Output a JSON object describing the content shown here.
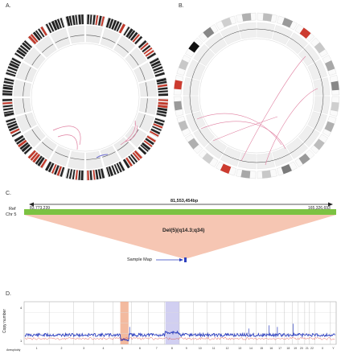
{
  "panels": {
    "a": {
      "label": "A."
    },
    "b": {
      "label": "B."
    },
    "c": {
      "label": "C.",
      "ref_label": "Ref",
      "chr_label": "Chr 5",
      "start": "83,773,239",
      "end": "165,326,693",
      "length": "81,553,454bp",
      "deletion": "Del(5)(q14.3;q34)",
      "sample_map": "Sample Map"
    },
    "d": {
      "label": "D.",
      "ylabel": "Copy number",
      "xlabel_left": "Aneuploidy",
      "ytick_top": "4",
      "ytick_bottom": "1",
      "chromosomes": [
        "1",
        "2",
        "3",
        "4",
        "5",
        "6",
        "7",
        "8",
        "9",
        "10",
        "11",
        "12",
        "13",
        "14",
        "15",
        "16",
        "17",
        "18",
        "19",
        "20",
        "21",
        "22",
        "X",
        "Y"
      ]
    }
  },
  "colors": {
    "green_bar": "#7cc242",
    "salmon": "#f6c6b3",
    "blue_signal": "#2d3fbf",
    "red_signal": "#d9392f",
    "link_pink": "#e07fa0",
    "deletion_highlight": "#f0a987",
    "gain_highlight": "#c9c7ef"
  }
}
